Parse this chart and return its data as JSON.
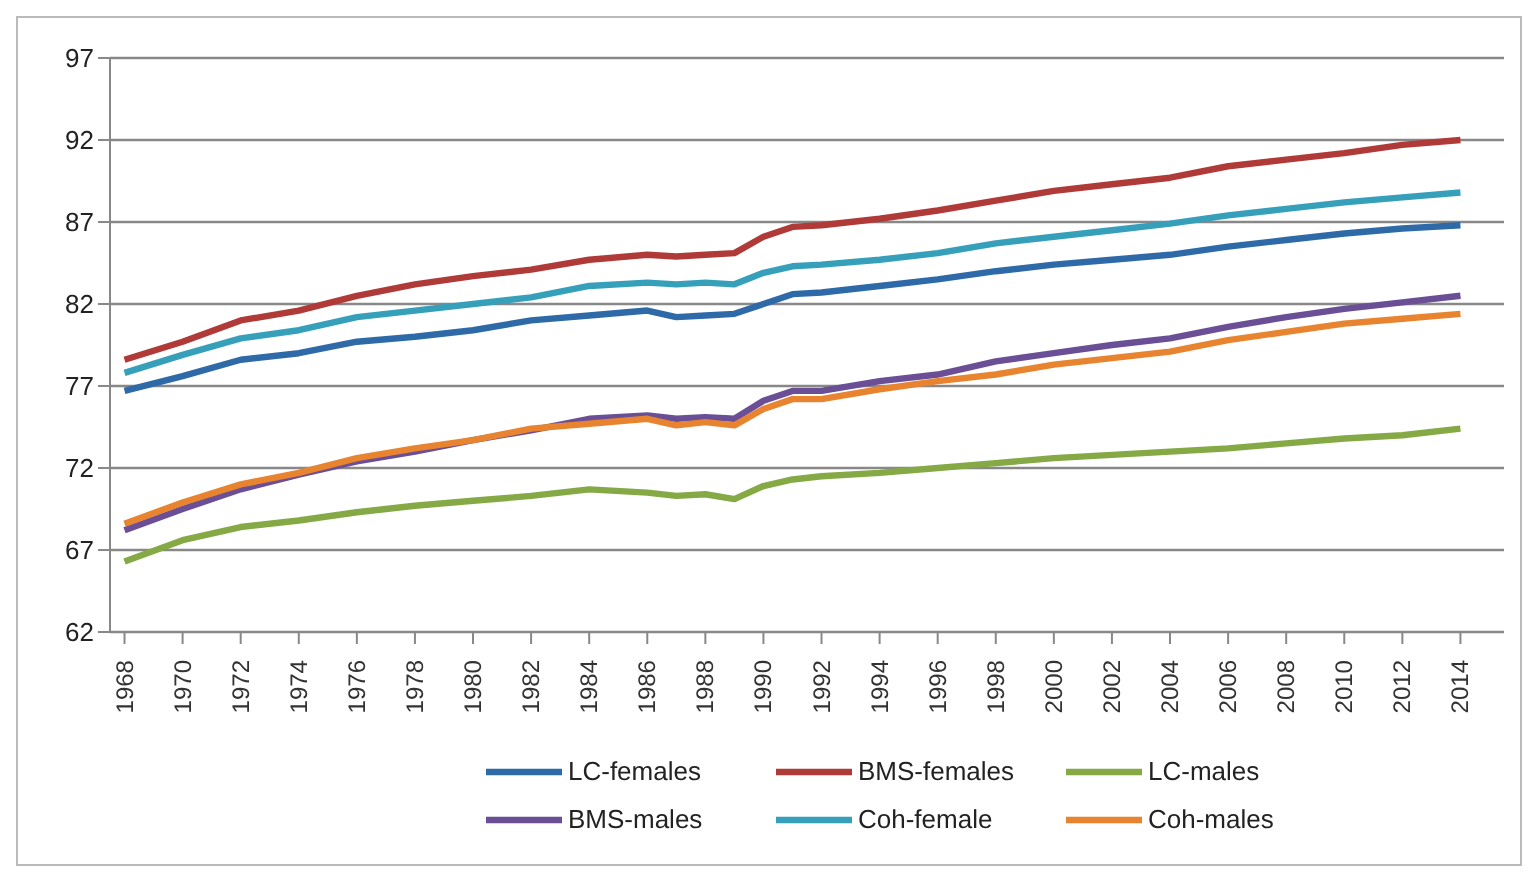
{
  "chart_data": {
    "type": "line",
    "x": [
      1968,
      1970,
      1972,
      1974,
      1976,
      1978,
      1980,
      1982,
      1984,
      1986,
      1987,
      1988,
      1989,
      1990,
      1991,
      1992,
      1994,
      1996,
      1998,
      2000,
      2002,
      2004,
      2006,
      2008,
      2010,
      2012,
      2014
    ],
    "series": [
      {
        "name": "LC-females",
        "color": "#2e6aa8",
        "values": [
          76.7,
          77.6,
          78.6,
          79.0,
          79.7,
          80.0,
          80.4,
          81.0,
          81.3,
          81.6,
          81.2,
          81.3,
          81.4,
          82.0,
          82.6,
          82.7,
          83.1,
          83.5,
          84.0,
          84.4,
          84.7,
          85.0,
          85.5,
          85.9,
          86.3,
          86.6,
          86.8
        ]
      },
      {
        "name": "BMS-females",
        "color": "#b03a37",
        "values": [
          78.6,
          79.7,
          81.0,
          81.6,
          82.5,
          83.2,
          83.7,
          84.1,
          84.7,
          85.0,
          84.9,
          85.0,
          85.1,
          86.1,
          86.7,
          86.8,
          87.2,
          87.7,
          88.3,
          88.9,
          89.3,
          89.7,
          90.4,
          90.8,
          91.2,
          91.7,
          92.0
        ]
      },
      {
        "name": "LC-males",
        "color": "#84a945",
        "values": [
          66.3,
          67.6,
          68.4,
          68.8,
          69.3,
          69.7,
          70.0,
          70.3,
          70.7,
          70.5,
          70.3,
          70.4,
          70.1,
          70.9,
          71.3,
          71.5,
          71.7,
          72.0,
          72.3,
          72.6,
          72.8,
          73.0,
          73.2,
          73.5,
          73.8,
          74.0,
          74.4
        ]
      },
      {
        "name": "BMS-males",
        "color": "#6a4e96",
        "values": [
          68.2,
          69.5,
          70.7,
          71.6,
          72.4,
          73.0,
          73.7,
          74.3,
          75.0,
          75.2,
          75.0,
          75.1,
          75.0,
          76.1,
          76.7,
          76.7,
          77.3,
          77.7,
          78.5,
          79.0,
          79.5,
          79.9,
          80.6,
          81.2,
          81.7,
          82.1,
          82.5
        ]
      },
      {
        "name": "Coh-female",
        "color": "#36a0bb",
        "values": [
          77.8,
          78.9,
          79.9,
          80.4,
          81.2,
          81.6,
          82.0,
          82.4,
          83.1,
          83.3,
          83.2,
          83.3,
          83.2,
          83.9,
          84.3,
          84.4,
          84.7,
          85.1,
          85.7,
          86.1,
          86.5,
          86.9,
          87.4,
          87.8,
          88.2,
          88.5,
          88.8
        ]
      },
      {
        "name": "Coh-males",
        "color": "#e8842f",
        "values": [
          68.6,
          69.9,
          71.0,
          71.7,
          72.6,
          73.2,
          73.7,
          74.4,
          74.7,
          75.0,
          74.6,
          74.8,
          74.6,
          75.6,
          76.2,
          76.2,
          76.8,
          77.3,
          77.7,
          78.3,
          78.7,
          79.1,
          79.8,
          80.3,
          80.8,
          81.1,
          81.4
        ]
      }
    ],
    "xlim": [
      1967.5,
      2015.5
    ],
    "xticks": [
      1968,
      1970,
      1972,
      1974,
      1976,
      1978,
      1980,
      1982,
      1984,
      1986,
      1988,
      1990,
      1992,
      1994,
      1996,
      1998,
      2000,
      2002,
      2004,
      2006,
      2008,
      2010,
      2012,
      2014
    ],
    "ylim": [
      62,
      97
    ],
    "yticks": [
      62,
      67,
      72,
      77,
      82,
      87,
      92,
      97
    ],
    "grid": "y",
    "legend": "bottom"
  }
}
